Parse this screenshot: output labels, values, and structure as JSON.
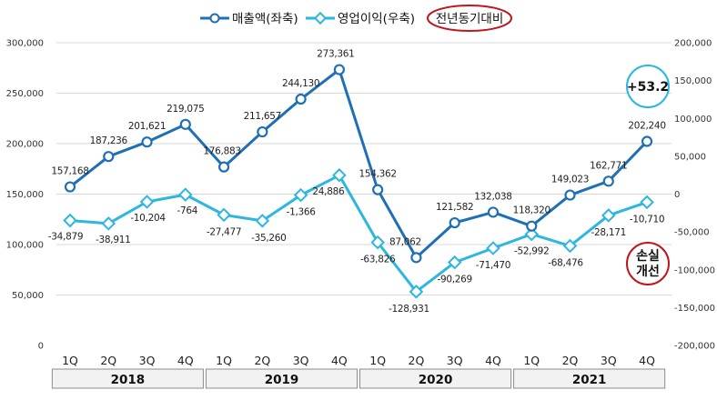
{
  "chart_data": {
    "type": "line",
    "categories": [
      "1Q",
      "2Q",
      "3Q",
      "4Q",
      "1Q",
      "2Q",
      "3Q",
      "4Q",
      "1Q",
      "2Q",
      "3Q",
      "4Q",
      "1Q",
      "2Q",
      "3Q",
      "4Q"
    ],
    "year_groups": [
      {
        "label": "2018",
        "start": 0,
        "end": 3
      },
      {
        "label": "2019",
        "start": 4,
        "end": 7
      },
      {
        "label": "2020",
        "start": 8,
        "end": 11
      },
      {
        "label": "2021",
        "start": 12,
        "end": 15
      }
    ],
    "series": [
      {
        "name": "매출액(좌축)",
        "axis": "left",
        "color": "#1f6fb5",
        "values": [
          157168,
          187236,
          201621,
          219075,
          176883,
          211657,
          244130,
          273361,
          154362,
          87062,
          121582,
          132038,
          118320,
          149023,
          162771,
          202240
        ],
        "labels": [
          "157,168",
          "187,236",
          "201,621",
          "219,075",
          "176,883",
          "211,657",
          "244,130",
          "273,361",
          "154,362",
          "87,062",
          "121,582",
          "132,038",
          "118,320",
          "149,023",
          "162,771",
          "202,240"
        ]
      },
      {
        "name": "영업이익(우축)",
        "axis": "right",
        "color": "#2cb6e0",
        "values": [
          -34879,
          -38911,
          -10204,
          -764,
          -27477,
          -35260,
          -1366,
          24886,
          -63826,
          -128931,
          -90269,
          -71470,
          -52992,
          -68476,
          -28171,
          -10710
        ],
        "labels": [
          "-34,879",
          "-38,911",
          "-10,204",
          "-764",
          "-27,477",
          "-35,260",
          "-1,366",
          "24,886",
          "-63,826",
          "-128,931",
          "-90,269",
          "-71,470",
          "-52,992",
          "-68,476",
          "-28,171",
          "-10,710"
        ]
      }
    ],
    "y_left": {
      "range": [
        0,
        300000
      ],
      "ticks": [
        0,
        50000,
        100000,
        150000,
        200000,
        250000,
        300000
      ],
      "tick_labels": [
        "0",
        "50,000",
        "100,000",
        "150,000",
        "200,000",
        "250,000",
        "300,000"
      ]
    },
    "y_right": {
      "range": [
        -200000,
        200000
      ],
      "ticks": [
        -200000,
        -150000,
        -100000,
        -50000,
        0,
        50000,
        100000,
        150000,
        200000
      ],
      "tick_labels": [
        "-200,000",
        "-150,000",
        "-100,000",
        "-50,000",
        "0",
        "50,000",
        "100,000",
        "150,000",
        "200,000"
      ]
    },
    "legend": {
      "position": "top-center",
      "items": [
        "매출액(좌축)",
        "영업이익(우축)"
      ],
      "note": "전년동기대비"
    },
    "annotations": [
      {
        "text": "+53.2",
        "shape": "circle",
        "color": "#2cb6e0"
      },
      {
        "text_lines": [
          "손실",
          "개선"
        ],
        "shape": "circle",
        "color": "#c0161e"
      }
    ],
    "grid": true
  }
}
